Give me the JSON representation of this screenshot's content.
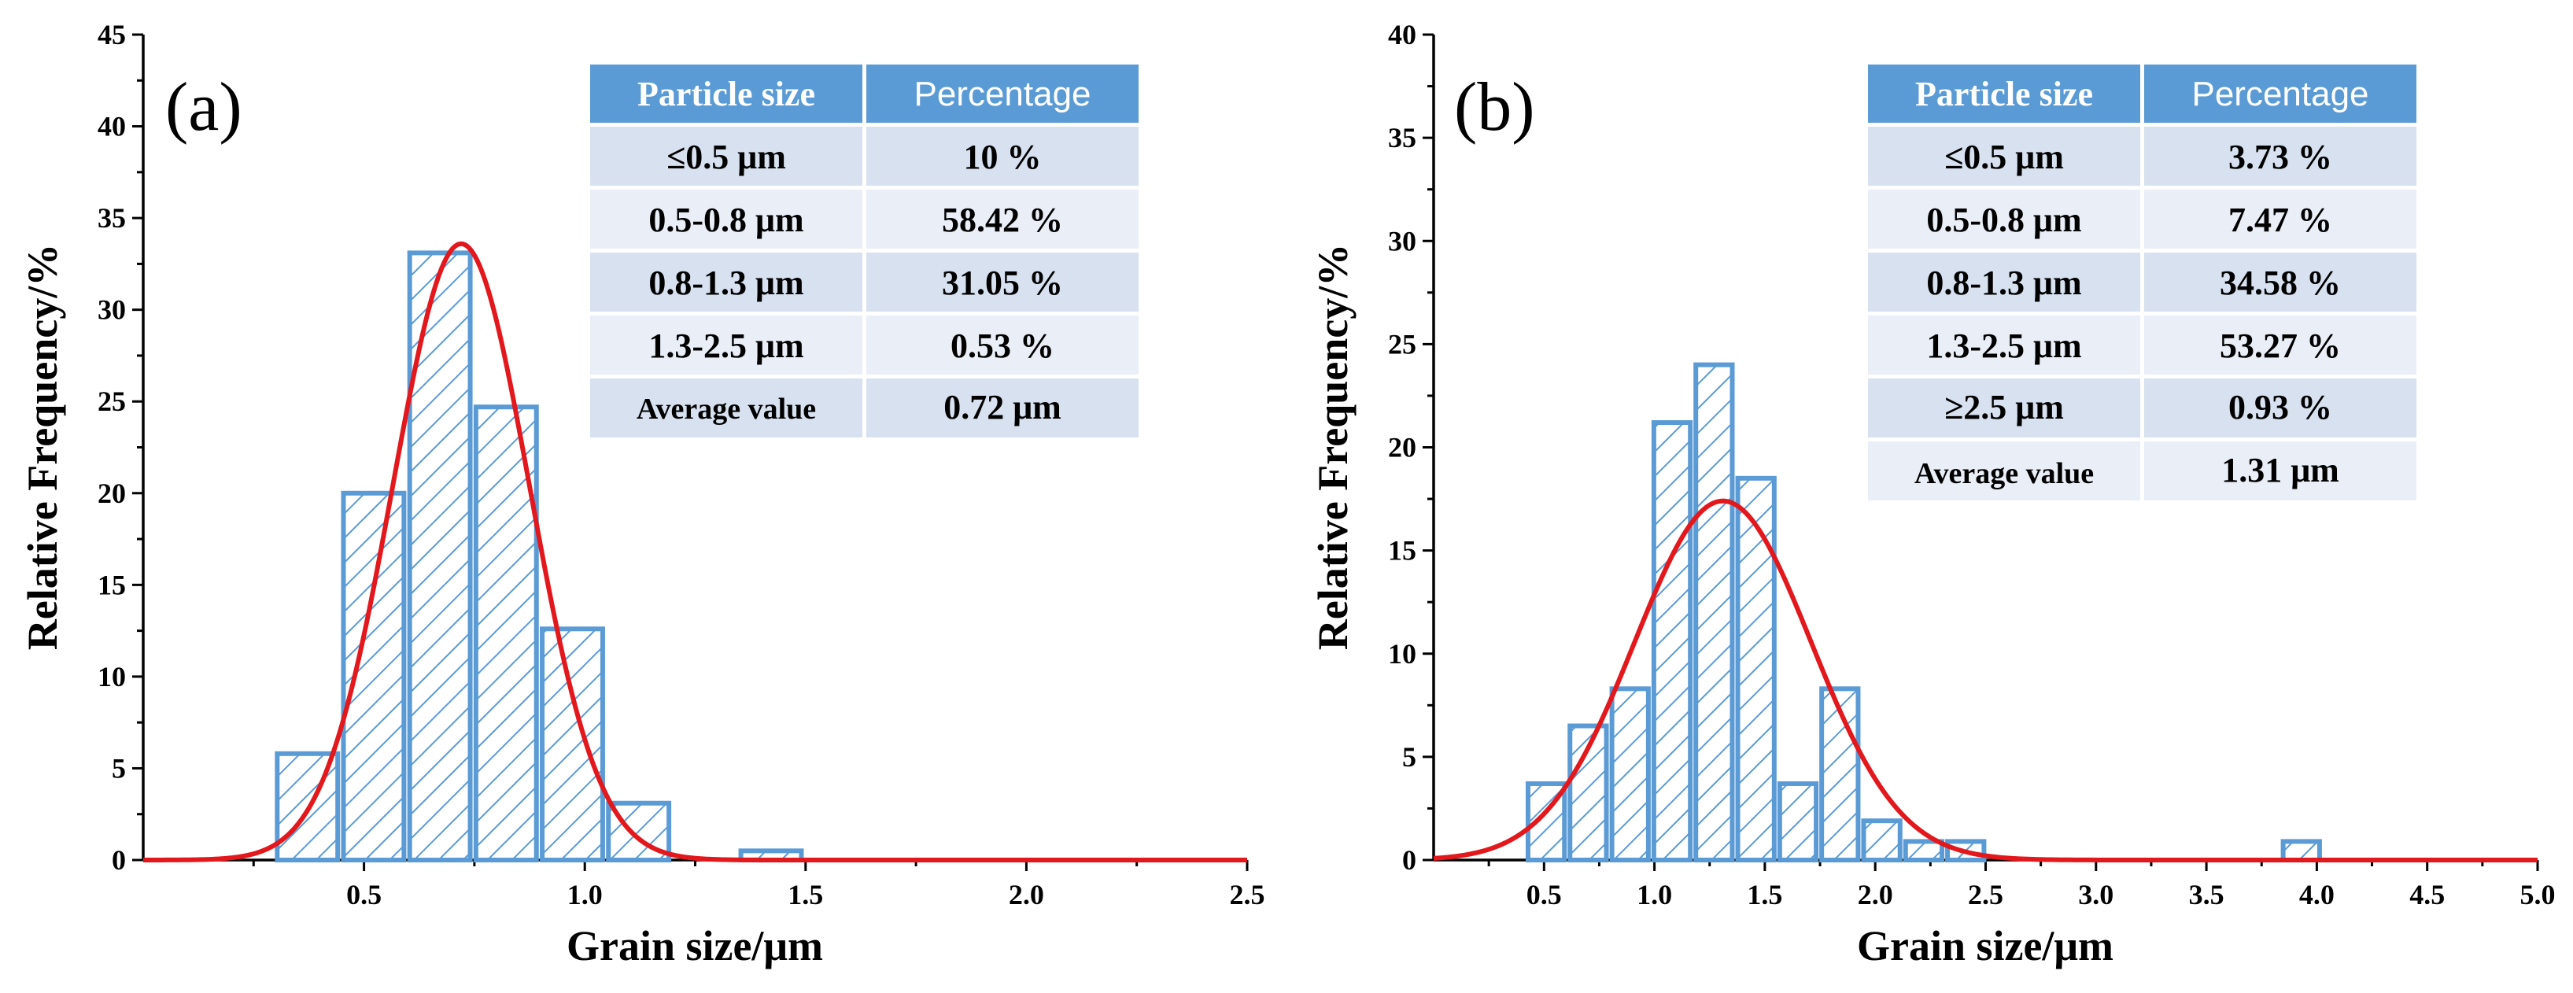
{
  "colors": {
    "bar_edge": "#5b9bd5",
    "hatch": "#5b9bd5",
    "fit_curve": "#e3181d",
    "table_header": "#5b9bd5",
    "table_row_a": "#d7e1ef",
    "table_row_b": "#e9eef7"
  },
  "chart_data": [
    {
      "type": "bar",
      "panel_label": "(a)",
      "xlabel": "Grain size/μm",
      "ylabel": "Relative Frequency/%",
      "xlim": [
        0,
        2.5
      ],
      "ylim": [
        0,
        45
      ],
      "x_ticks": [
        0.5,
        1.0,
        1.5,
        2.0,
        2.5
      ],
      "x_tick_labels": [
        "0.5",
        "1.0",
        "1.5",
        "2.0",
        "2.5"
      ],
      "y_ticks": [
        0,
        5,
        10,
        15,
        20,
        25,
        30,
        35,
        40,
        45
      ],
      "y_tick_labels": [
        "0",
        "5",
        "10",
        "15",
        "20",
        "25",
        "30",
        "35",
        "40",
        "45"
      ],
      "bin_width": 0.137,
      "bins": [
        {
          "x": 0.372,
          "value": 5.8
        },
        {
          "x": 0.522,
          "value": 20.0
        },
        {
          "x": 0.672,
          "value": 33.1
        },
        {
          "x": 0.822,
          "value": 24.7
        },
        {
          "x": 0.972,
          "value": 12.6
        },
        {
          "x": 1.122,
          "value": 3.1
        },
        {
          "x": 1.422,
          "value": 0.5
        }
      ],
      "fit": {
        "type": "gaussian",
        "mean": 0.72,
        "sigma": 0.155,
        "peak": 33.6
      },
      "table": {
        "headers": [
          "Particle size",
          "Percentage"
        ],
        "rows": [
          [
            "≤0.5 μm",
            "10 %"
          ],
          [
            "0.5-0.8 μm",
            "58.42 %"
          ],
          [
            "0.8-1.3 μm",
            "31.05 %"
          ],
          [
            "1.3-2.5 μm",
            "0.53 %"
          ],
          [
            "Average value",
            "0.72 μm"
          ]
        ]
      }
    },
    {
      "type": "bar",
      "panel_label": "(b)",
      "xlabel": "Grain size/μm",
      "ylabel": "Relative Frequency/%",
      "xlim": [
        0,
        5.0
      ],
      "ylim": [
        0,
        40
      ],
      "x_ticks": [
        0.5,
        1.0,
        1.5,
        2.0,
        2.5,
        3.0,
        3.5,
        4.0,
        4.5,
        5.0
      ],
      "x_tick_labels": [
        "0.5",
        "1.0",
        "1.5",
        "2.0",
        "2.5",
        "3.0",
        "3.5",
        "4.0",
        "4.5",
        "5.0"
      ],
      "y_ticks": [
        0,
        5,
        10,
        15,
        20,
        25,
        30,
        35,
        40
      ],
      "y_tick_labels": [
        "0",
        "5",
        "10",
        "15",
        "20",
        "25",
        "30",
        "35",
        "40"
      ],
      "bin_width": 0.165,
      "bins": [
        {
          "x": 0.51,
          "value": 3.7
        },
        {
          "x": 0.7,
          "value": 6.5
        },
        {
          "x": 0.89,
          "value": 8.3
        },
        {
          "x": 1.08,
          "value": 21.2
        },
        {
          "x": 1.27,
          "value": 24.0
        },
        {
          "x": 1.46,
          "value": 18.5
        },
        {
          "x": 1.65,
          "value": 3.7
        },
        {
          "x": 1.84,
          "value": 8.3
        },
        {
          "x": 2.03,
          "value": 1.9
        },
        {
          "x": 2.22,
          "value": 0.9
        },
        {
          "x": 2.41,
          "value": 0.9
        },
        {
          "x": 3.93,
          "value": 0.9
        }
      ],
      "fit": {
        "type": "gaussian",
        "mean": 1.31,
        "sigma": 0.4,
        "peak": 17.4
      },
      "table": {
        "headers": [
          "Particle size",
          "Percentage"
        ],
        "rows": [
          [
            "≤0.5 μm",
            "3.73 %"
          ],
          [
            "0.5-0.8 μm",
            "7.47 %"
          ],
          [
            "0.8-1.3 μm",
            "34.58 %"
          ],
          [
            "1.3-2.5 μm",
            "53.27 %"
          ],
          [
            "≥2.5 μm",
            "0.93 %"
          ],
          [
            "Average value",
            "1.31 μm"
          ]
        ]
      }
    }
  ]
}
